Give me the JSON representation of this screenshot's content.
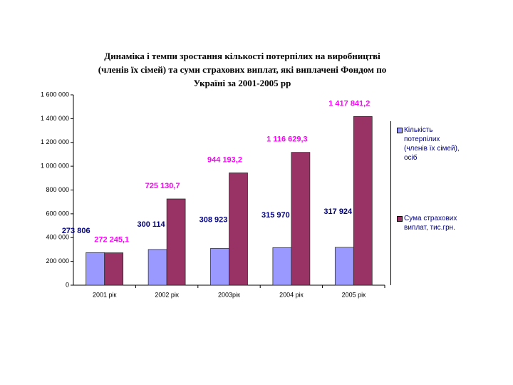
{
  "chart_data": {
    "type": "bar",
    "title": [
      "Динаміка і темпи зростання кількості потерпілих на виробництві",
      "(членів їх сімей) та суми страхових виплат, які виплачені Фондом   по",
      "Україні   за 2001-2005 рр"
    ],
    "categories": [
      "2001 рік",
      "2002 рік",
      "2003рік",
      "2004 рік",
      "2005 рік"
    ],
    "series": [
      {
        "name": "Кількість потерпілих (членів їх сімей), осіб",
        "color": "#9999ff",
        "label_color": "#000080",
        "values": [
          273806,
          300114,
          308923,
          315970,
          317924
        ],
        "value_labels": [
          "273 806",
          "300 114",
          "308 923",
          "315 970",
          "317 924"
        ]
      },
      {
        "name": "Сума страхових виплат, тис.грн.",
        "color": "#993366",
        "label_color": "#ff00ff",
        "values": [
          272245.1,
          725130.7,
          944193.2,
          1116629.3,
          1417841.2
        ],
        "value_labels": [
          "272 245,1",
          "725 130,7",
          "944 193,2",
          "1 116 629,3",
          "1 417 841,2"
        ]
      }
    ],
    "ylim": [
      0,
      1600000
    ],
    "yticks": [
      0,
      {
        "value": 200000,
        "label": "200 000"
      },
      {
        "value": 400000,
        "label": "400 000"
      },
      {
        "value": 600000,
        "label": "600 000"
      },
      {
        "value": 800000,
        "label": "800 000"
      },
      {
        "value": 1000000,
        "label": "1 000 000"
      },
      {
        "value": 1200000,
        "label": "1 200 000"
      },
      {
        "value": 1400000,
        "label": "1 400 000"
      },
      {
        "value": 1600000,
        "label": "1 600 000"
      }
    ],
    "grid": false,
    "legend": "right"
  }
}
